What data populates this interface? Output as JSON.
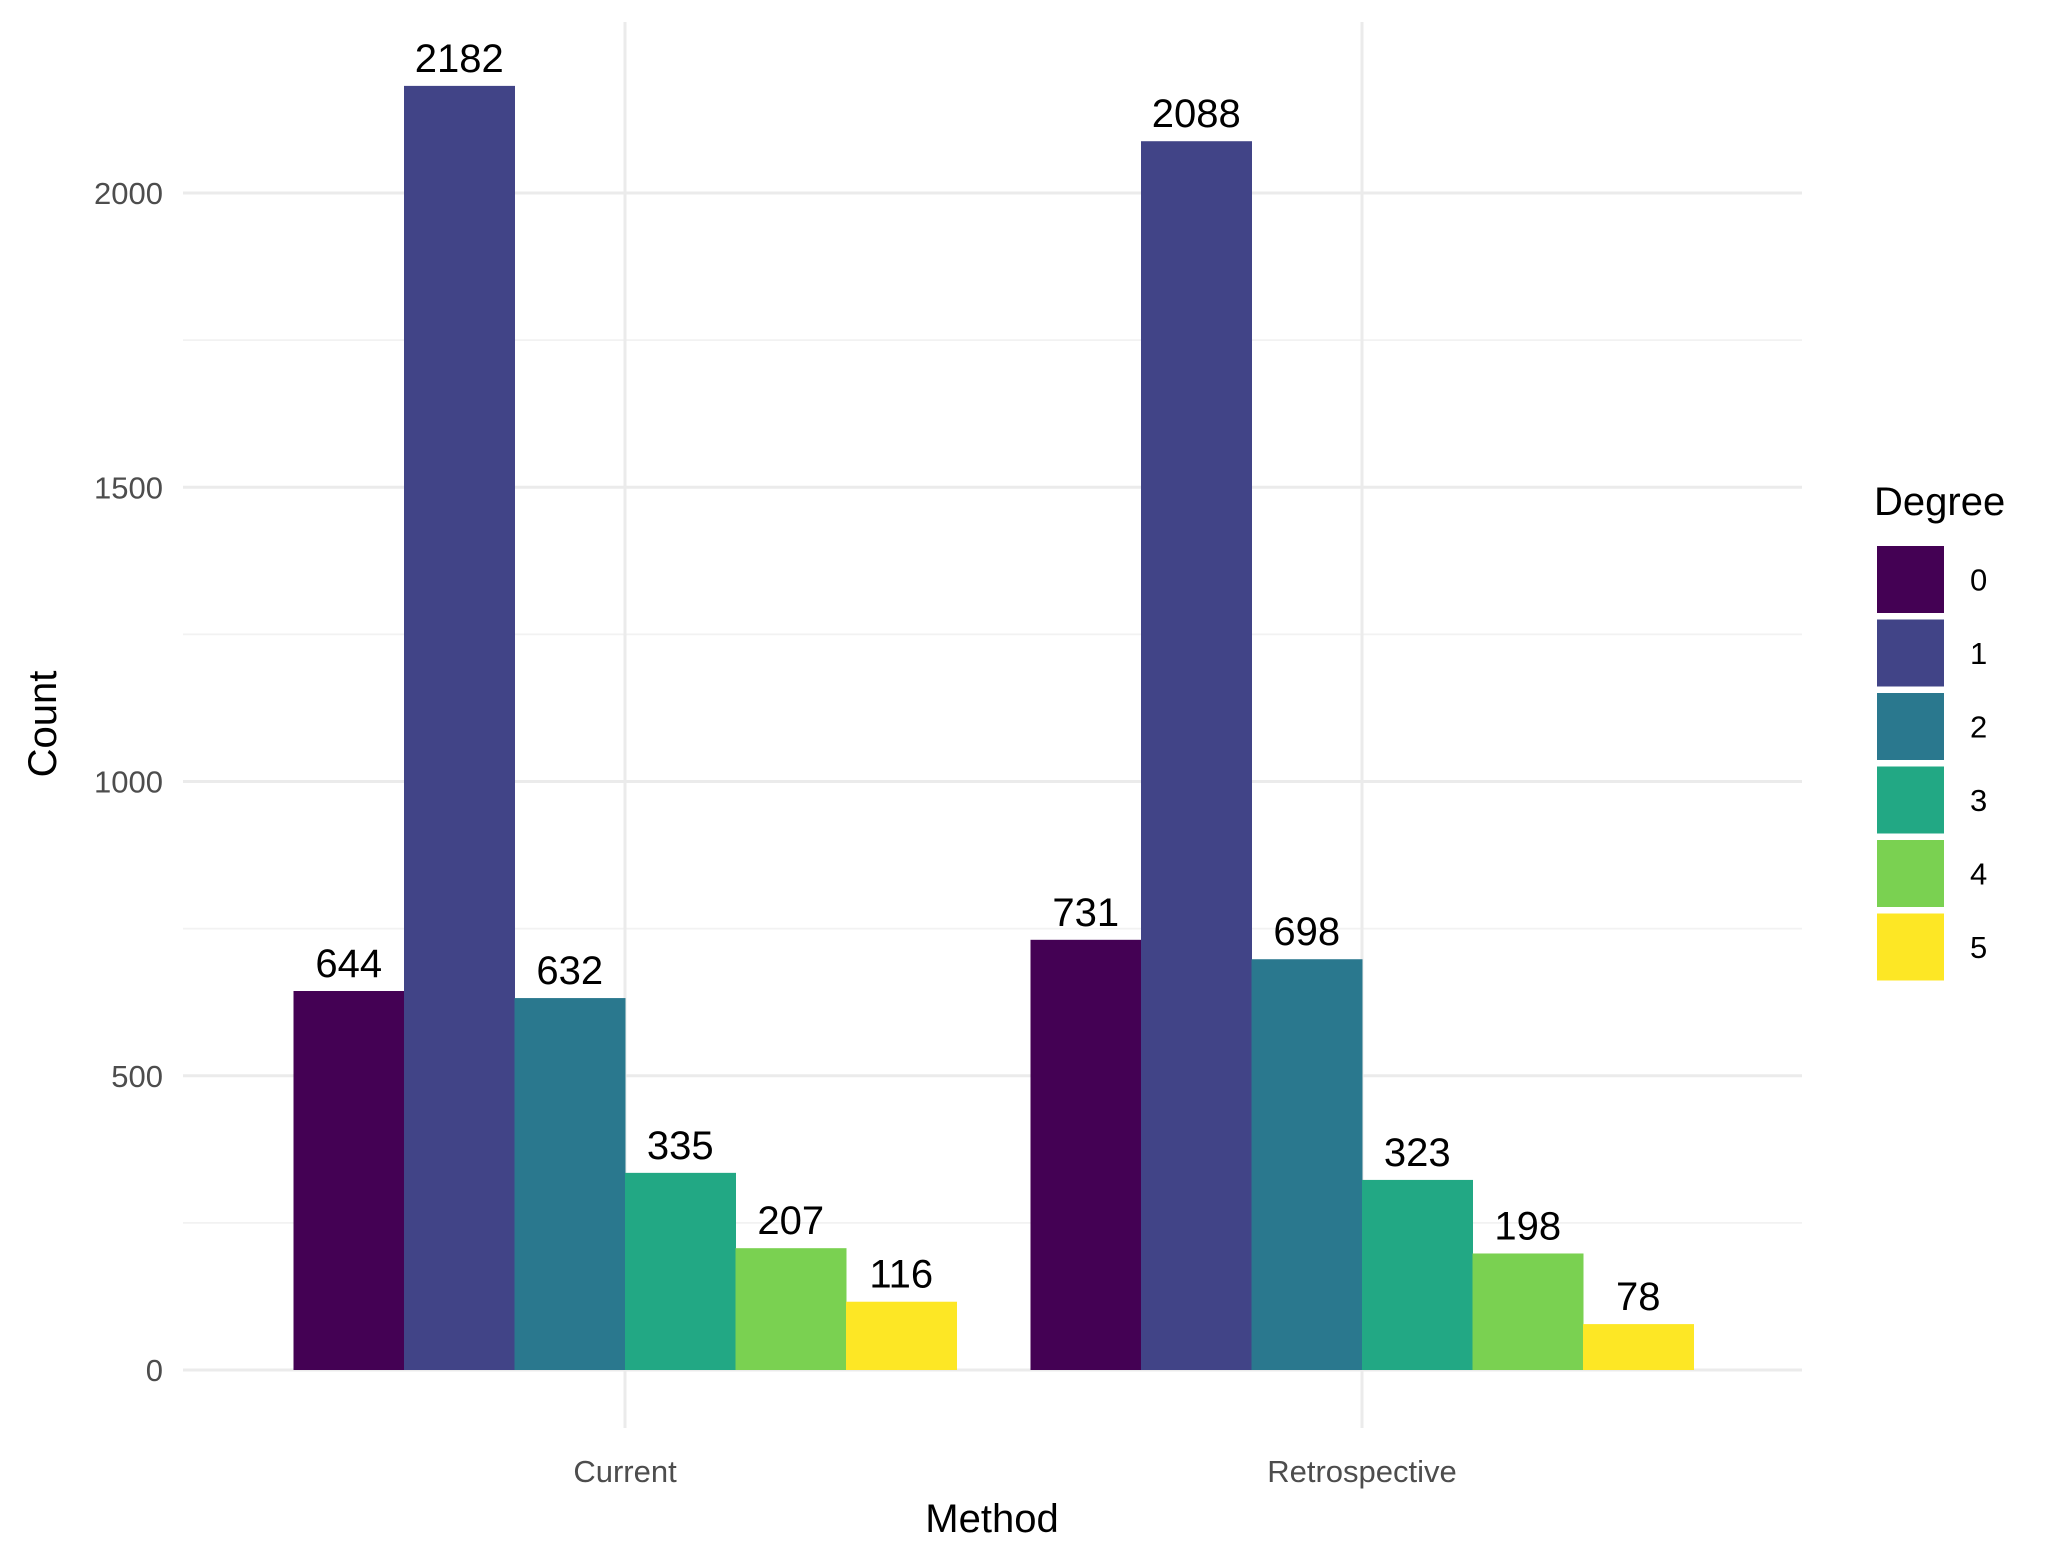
{
  "chart_data": {
    "type": "bar",
    "xlabel": "Method",
    "ylabel": "Count",
    "categories": [
      "Current",
      "Retrospective"
    ],
    "ylim": [
      0,
      2300
    ],
    "y_ticks": [
      0,
      500,
      1000,
      1500,
      2000
    ],
    "grid": true,
    "legend": {
      "title": "Degree",
      "position": "right"
    },
    "series": [
      {
        "name": "0",
        "color": "#440154",
        "values": [
          644,
          731
        ]
      },
      {
        "name": "1",
        "color": "#414487",
        "values": [
          2182,
          2088
        ]
      },
      {
        "name": "2",
        "color": "#2A788E",
        "values": [
          632,
          698
        ]
      },
      {
        "name": "3",
        "color": "#22A884",
        "values": [
          335,
          323
        ]
      },
      {
        "name": "4",
        "color": "#7AD151",
        "values": [
          207,
          198
        ]
      },
      {
        "name": "5",
        "color": "#FDE725",
        "values": [
          116,
          78
        ]
      }
    ]
  }
}
